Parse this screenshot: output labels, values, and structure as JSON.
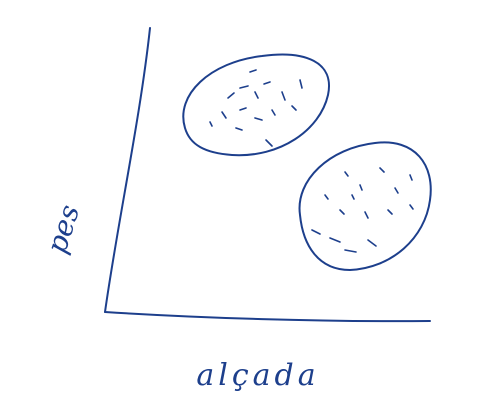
{
  "x_label": "alçada",
  "y_label": "pes"
}
